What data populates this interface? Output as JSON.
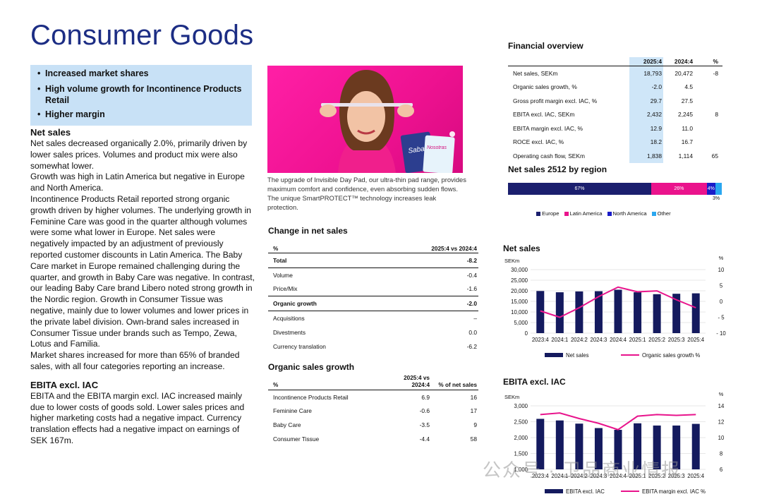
{
  "page_title": "Consumer Goods",
  "highlights": [
    "Increased market shares",
    "High volume growth for Incontinence Products Retail",
    "Higher margin"
  ],
  "net_sales": {
    "heading": "Net sales",
    "paragraphs": [
      "Net sales decreased organically 2.0%, primarily driven by lower sales prices. Volumes and product mix were also somewhat lower.",
      "Growth was high in Latin America but negative in Europe and North America.",
      "Incontinence Products Retail reported strong organic growth driven by higher volumes. The underlying growth in Feminine Care was good in the quarter although volumes were some what lower in Europe. Net sales were negatively impacted by an adjustment of previously reported customer discounts in Latin America. The Baby Care market in Europe remained challenging during the quarter, and growth in Baby Care was negative. In contrast, our leading Baby Care brand Libero noted strong growth in the Nordic region. Growth in Consumer Tissue was negative, mainly due to lower volumes and lower prices in the private label division. Own-brand sales increased in Consumer Tissue under brands such as Tempo, Zewa, Lotus and Familia.",
      "Market shares increased for more than 65% of branded sales, with all four categories reporting an increase."
    ]
  },
  "ebita_text": {
    "heading": "EBITA excl. IAC",
    "paragraphs": [
      "EBITA and the EBITA margin excl. IAC increased mainly due to lower costs of goods sold. Lower sales prices and higher marketing costs had a negative impact. Currency translation effects had a negative impact on earnings of SEK 167m."
    ]
  },
  "photo": {
    "caption": "The upgrade of Invisible Day Pad, our ultra-thin pad range, provides maximum comfort and confidence, even absorbing sudden flows. The unique SmartPROTECT™ technology increases leak protection.",
    "brand_1": "Saba",
    "brand_2": "Nosotras",
    "colors": {
      "background": "#ee1190",
      "sweater": "#f01f8c",
      "hair": "#6b3a1f",
      "skin": "#f2c3a5"
    }
  },
  "change_in_net_sales": {
    "title": "Change in net sales",
    "header": [
      "%",
      "2025:4 vs 2024:4"
    ],
    "rows": [
      {
        "label": "Total",
        "value": "-8.2"
      },
      {
        "label": "Volume",
        "value": "-0.4"
      },
      {
        "label": "Price/Mix",
        "value": "-1.6"
      },
      {
        "label": "Organic growth",
        "value": "-2.0"
      },
      {
        "label": "Acquisitions",
        "value": "–"
      },
      {
        "label": "Divestments",
        "value": "0.0"
      },
      {
        "label": "Currency translation",
        "value": "-6.2"
      }
    ]
  },
  "organic_sales_growth": {
    "title": "Organic sales growth",
    "header": [
      "%",
      "2025:4 vs 2024:4",
      "% of net sales"
    ],
    "rows": [
      {
        "label": "Incontinence Products Retail",
        "value": "6.9",
        "share": "16"
      },
      {
        "label": "Feminine Care",
        "value": "-0.6",
        "share": "17"
      },
      {
        "label": "Baby Care",
        "value": "-3.5",
        "share": "9"
      },
      {
        "label": "Consumer Tissue",
        "value": "-4.4",
        "share": "58"
      }
    ]
  },
  "financial_overview": {
    "title": "Financial overview",
    "header": [
      "",
      "2025:4",
      "2024:4",
      "%"
    ],
    "rows": [
      {
        "label": "Net sales, SEKm",
        "cur": "18,793",
        "prev": "20,472",
        "chg": "-8"
      },
      {
        "label": "Organic sales growth, %",
        "cur": "-2.0",
        "prev": "4.5",
        "chg": ""
      },
      {
        "label": "Gross profit margin excl. IAC, %",
        "cur": "29.7",
        "prev": "27.5",
        "chg": ""
      },
      {
        "label": "EBITA excl. IAC, SEKm",
        "cur": "2,432",
        "prev": "2,245",
        "chg": "8"
      },
      {
        "label": "EBITA margin excl. IAC, %",
        "cur": "12.9",
        "prev": "11.0",
        "chg": ""
      },
      {
        "label": "ROCE excl. IAC, %",
        "cur": "18.2",
        "prev": "16.7",
        "chg": ""
      },
      {
        "label": "Operating cash flow, SEKm",
        "cur": "1,838",
        "prev": "1,114",
        "chg": "65"
      }
    ]
  },
  "region": {
    "title": "Net sales 2512 by region",
    "segments": [
      {
        "name": "Europe",
        "value": 67,
        "label": "67%",
        "color": "#1b1f6e"
      },
      {
        "name": "Latin America",
        "value": 26,
        "label": "26%",
        "color": "#ea138c"
      },
      {
        "name": "North America",
        "value": 4,
        "label": "4%",
        "color": "#1a1cc8"
      },
      {
        "name": "Other",
        "value": 3,
        "label": "3%",
        "color": "#2aa7f0"
      }
    ]
  },
  "chart_data": [
    {
      "type": "bar",
      "title": "Net sales",
      "y_unit": "SEKm",
      "y2_unit": "%",
      "categories": [
        "2023:4",
        "2024:1",
        "2024:2",
        "2024:3",
        "2024:4",
        "2025:1",
        "2025:2",
        "2025:3",
        "2025:4"
      ],
      "series": [
        {
          "name": "Net sales",
          "kind": "bar",
          "axis": "left",
          "color": "#141a5e",
          "values": [
            19900,
            19300,
            19700,
            19800,
            20500,
            19300,
            18400,
            18600,
            18800
          ]
        },
        {
          "name": "Organic sales growth %",
          "kind": "line",
          "axis": "right",
          "color": "#e8148c",
          "values": [
            -3,
            -5,
            -2,
            1.5,
            4.5,
            3,
            3.3,
            0.5,
            -2
          ]
        }
      ],
      "ylim": [
        0,
        30000
      ],
      "y_ticks": [
        "0",
        "5,000",
        "10,000",
        "15,000",
        "20,000",
        "25,000",
        "30,000"
      ],
      "y2lim": [
        -10,
        10
      ],
      "y2_ticks": [
        "- 10",
        "- 5",
        "0",
        "5",
        "10"
      ]
    },
    {
      "type": "bar",
      "title": "EBITA excl. IAC",
      "y_unit": "SEKm",
      "y2_unit": "%",
      "categories": [
        "2023:4",
        "2024:1",
        "2024:2",
        "2024:3",
        "2024:4",
        "2025:1",
        "2025:2",
        "2025:3",
        "2025:4"
      ],
      "series": [
        {
          "name": "EBITA excl. IAC",
          "kind": "bar",
          "axis": "left",
          "color": "#141a5e",
          "values": [
            2590,
            2540,
            2440,
            2300,
            2245,
            2450,
            2380,
            2380,
            2432
          ]
        },
        {
          "name": "EBITA margin excl. IAC %",
          "kind": "line",
          "axis": "right",
          "color": "#e8148c",
          "values": [
            12.9,
            13.1,
            12.4,
            11.8,
            11.0,
            12.7,
            12.9,
            12.8,
            12.9
          ]
        }
      ],
      "ylim": [
        1000,
        3000
      ],
      "y_ticks": [
        "1,000",
        "1,500",
        "2,000",
        "2,500",
        "3,000"
      ],
      "y2lim": [
        6,
        14
      ],
      "y2_ticks": [
        "6",
        "8",
        "10",
        "12",
        "14"
      ]
    }
  ],
  "watermark": "公众号 · 卫品商业情报"
}
